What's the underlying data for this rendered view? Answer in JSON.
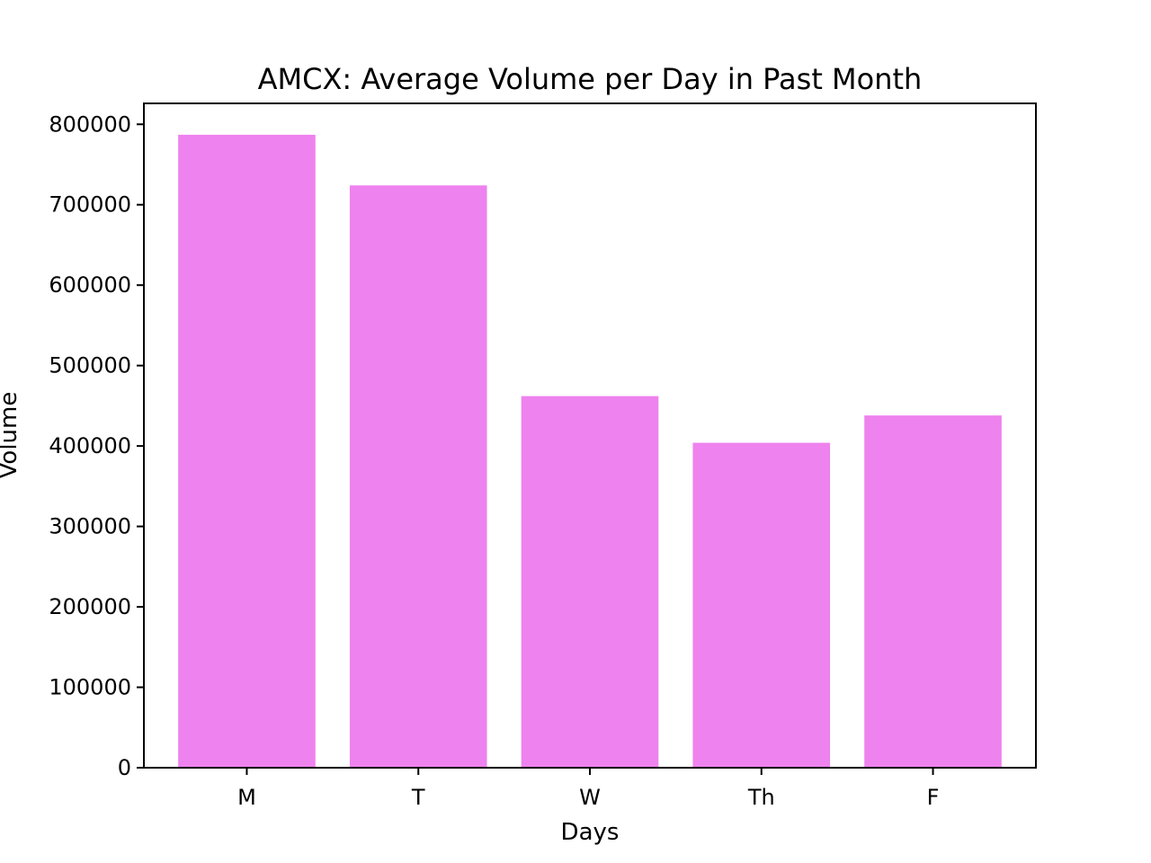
{
  "chart_data": {
    "type": "bar",
    "title": "AMCX: Average Volume per Day in Past Month",
    "xlabel": "Days",
    "ylabel": "Volume",
    "categories": [
      "M",
      "T",
      "W",
      "Th",
      "F"
    ],
    "values": [
      787000,
      724000,
      462000,
      404000,
      438000
    ],
    "ylim": [
      0,
      826000
    ],
    "yticks": [
      0,
      100000,
      200000,
      300000,
      400000,
      500000,
      600000,
      700000,
      800000
    ],
    "ytick_labels": [
      "0",
      "100000",
      "200000",
      "300000",
      "400000",
      "500000",
      "600000",
      "700000",
      "800000"
    ],
    "bar_color": "#ee82ee",
    "grid": false,
    "legend": "none"
  }
}
